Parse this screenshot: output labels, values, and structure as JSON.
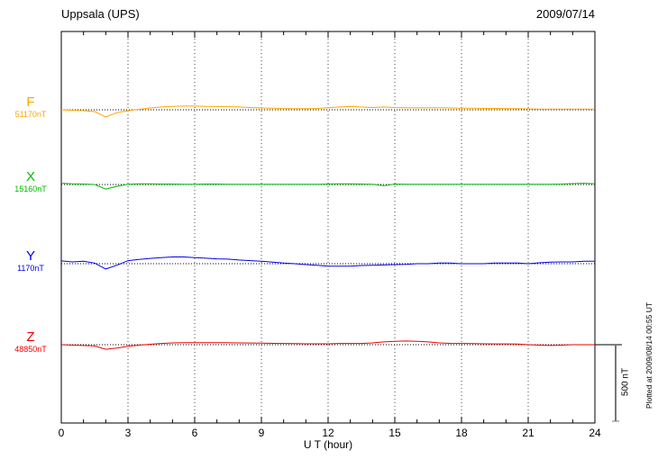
{
  "header": {
    "station": "Uppsala (UPS)",
    "date": "2009/07/14"
  },
  "chart_data": {
    "type": "line",
    "title": "Uppsala (UPS)",
    "date": "2009/07/14",
    "xlabel": "U T (hour)",
    "x_range": [
      0,
      24
    ],
    "x_ticks": [
      0,
      3,
      6,
      9,
      12,
      15,
      18,
      21,
      24
    ],
    "sample_step_hours": 0.5,
    "grid": "dotted-vertical-at-3h",
    "legend_position": "left-of-each-trace",
    "scale_bar": {
      "label": "500 nT",
      "nT": 500
    },
    "footnote": "Plotted at 2009/08/14 00:55 UT",
    "series": [
      {
        "name": "F",
        "base_label": "51170nT",
        "color": "#FFA500",
        "values": [
          0,
          -3,
          -6,
          -12,
          -47,
          -18,
          -6,
          3,
          12,
          18,
          22,
          24,
          24,
          22,
          21,
          20,
          18,
          15,
          12,
          10,
          8,
          7,
          7,
          9,
          13,
          18,
          21,
          18,
          15,
          18,
          15,
          13,
          13,
          13,
          13,
          12,
          10,
          10,
          9,
          9,
          8,
          7,
          6,
          5,
          4,
          4,
          4,
          4,
          4
        ]
      },
      {
        "name": "X",
        "base_label": "15160nT",
        "color": "#00BB00",
        "values": [
          8,
          5,
          3,
          0,
          -30,
          -12,
          2,
          4,
          4,
          3,
          3,
          2,
          2,
          3,
          3,
          2,
          2,
          2,
          2,
          2,
          2,
          1,
          1,
          2,
          3,
          4,
          5,
          3,
          2,
          -8,
          3,
          2,
          2,
          2,
          2,
          2,
          2,
          2,
          2,
          2,
          2,
          1,
          1,
          1,
          2,
          3,
          6,
          8,
          4
        ]
      },
      {
        "name": "Y",
        "base_label": "1170nT",
        "color": "#0000EE",
        "values": [
          18,
          12,
          16,
          4,
          -35,
          -10,
          20,
          28,
          35,
          40,
          44,
          44,
          40,
          36,
          32,
          30,
          24,
          20,
          16,
          10,
          4,
          0,
          -6,
          -10,
          -16,
          -16,
          -16,
          -12,
          -10,
          -8,
          -6,
          -4,
          0,
          0,
          4,
          4,
          0,
          0,
          0,
          4,
          4,
          4,
          0,
          6,
          10,
          12,
          12,
          16,
          16
        ]
      },
      {
        "name": "Z",
        "base_label": "48850nT",
        "color": "#EE0000",
        "values": [
          0,
          -3,
          -5,
          -8,
          -30,
          -22,
          -10,
          -3,
          3,
          8,
          12,
          13,
          13,
          13,
          13,
          13,
          12,
          11,
          10,
          9,
          8,
          7,
          6,
          6,
          6,
          8,
          8,
          8,
          12,
          18,
          22,
          24,
          22,
          18,
          12,
          9,
          8,
          7,
          6,
          5,
          5,
          4,
          0,
          -3,
          -5,
          -3,
          0,
          0,
          0
        ]
      }
    ]
  }
}
